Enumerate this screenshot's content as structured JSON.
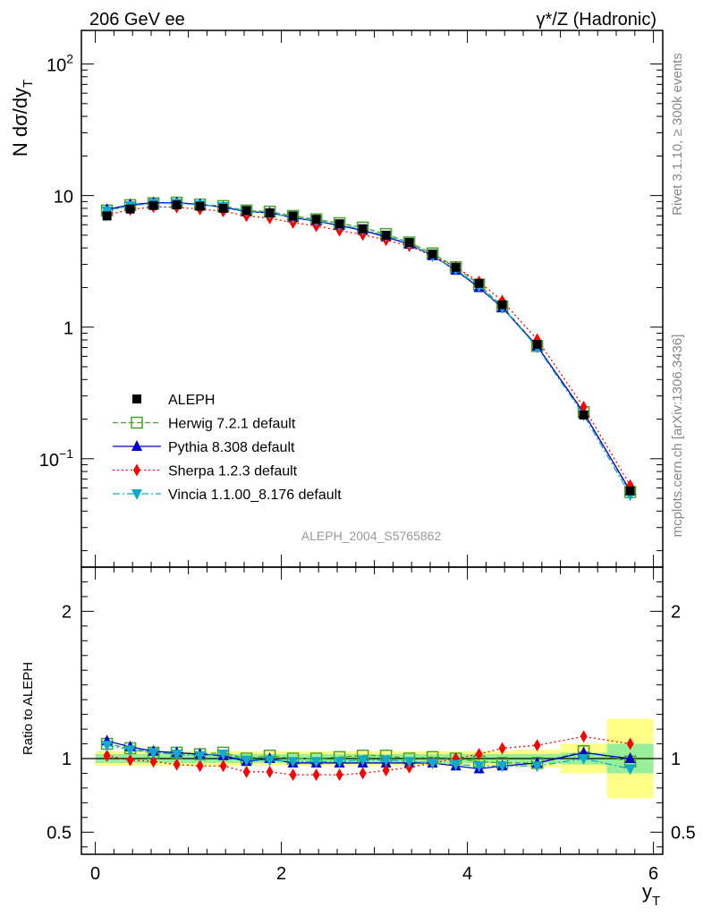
{
  "chart_data": {
    "type": "line",
    "title_left": "206 GeV ee",
    "title_right": "γ*/Z (Hadronic)",
    "xlabel": "y",
    "xlabel_sub": "T",
    "ylabel": "N dσ/dy",
    "ylabel_sub": "T",
    "ratio_ylabel": "Ratio to ALEPH",
    "analysis_label": "ALEPH_2004_S5765862",
    "side_label_1": "Rivet 3.1.10, ≥ 300k events",
    "side_label_2": "mcplots.cern.ch [arXiv:1306.3436]",
    "xlim": [
      -0.15,
      6.1
    ],
    "ylim": [
      0.015,
      180
    ],
    "yscale": "log",
    "ratio_ylim": [
      0.35,
      2.3
    ],
    "x_ticks": [
      0,
      2,
      4,
      6
    ],
    "main_y_ticks": [
      {
        "value": 100,
        "label": "10",
        "sup": "2"
      },
      {
        "value": 10,
        "label": "10",
        "sup": ""
      },
      {
        "value": 1,
        "label": "1",
        "sup": ""
      },
      {
        "value": 0.1,
        "label": "10",
        "sup": "−1"
      }
    ],
    "ratio_y_ticks": [
      {
        "value": 0.5,
        "label": "0.5"
      },
      {
        "value": 1,
        "label": "1"
      },
      {
        "value": 2,
        "label": "2"
      }
    ],
    "x": [
      0.125,
      0.375,
      0.625,
      0.875,
      1.125,
      1.375,
      1.625,
      1.875,
      2.125,
      2.375,
      2.625,
      2.875,
      3.125,
      3.375,
      3.625,
      3.875,
      4.125,
      4.375,
      4.75,
      5.25,
      5.75
    ],
    "bin_edges": [
      0,
      0.25,
      0.5,
      0.75,
      1.0,
      1.25,
      1.5,
      1.75,
      2.0,
      2.25,
      2.5,
      2.75,
      3.0,
      3.25,
      3.5,
      3.75,
      4.0,
      4.25,
      4.5,
      5.0,
      5.5,
      6.0
    ],
    "data": {
      "name": "ALEPH",
      "values": [
        7.0,
        7.9,
        8.4,
        8.5,
        8.3,
        8.0,
        7.7,
        7.4,
        7.0,
        6.6,
        6.1,
        5.6,
        5.0,
        4.4,
        3.6,
        2.85,
        2.15,
        1.48,
        0.74,
        0.215,
        0.057
      ],
      "band_stat": [
        0.03,
        0.03,
        0.03,
        0.03,
        0.03,
        0.03,
        0.03,
        0.03,
        0.03,
        0.03,
        0.03,
        0.03,
        0.03,
        0.03,
        0.03,
        0.03,
        0.03,
        0.03,
        0.03,
        0.04,
        0.1
      ],
      "band_total": [
        0.05,
        0.05,
        0.05,
        0.05,
        0.05,
        0.05,
        0.05,
        0.05,
        0.05,
        0.05,
        0.05,
        0.05,
        0.05,
        0.05,
        0.05,
        0.05,
        0.05,
        0.05,
        0.06,
        0.1,
        0.27
      ]
    },
    "series": [
      {
        "name": "Herwig 7.2.1 default",
        "color": "#44a32a",
        "dash": "6,3",
        "marker": "open-square",
        "ratio": [
          1.1,
          1.07,
          1.04,
          1.04,
          1.03,
          1.04,
          1.0,
          1.02,
          1.0,
          1.0,
          1.01,
          1.02,
          1.02,
          1.0,
          1.01,
          1.0,
          0.98,
          0.97,
          0.97,
          1.05,
          0.98
        ]
      },
      {
        "name": "Pythia 8.308 default",
        "color": "#0000cc",
        "dash": "",
        "marker": "triangle-up",
        "ratio": [
          1.12,
          1.08,
          1.05,
          1.04,
          1.03,
          1.02,
          0.98,
          1.0,
          0.97,
          0.97,
          0.97,
          0.97,
          0.97,
          0.97,
          0.97,
          0.95,
          0.93,
          0.95,
          0.97,
          1.04,
          1.0
        ]
      },
      {
        "name": "Sherpa 1.2.3 default",
        "color": "#ff0000",
        "dash": "2,3",
        "marker": "diamond",
        "ratio": [
          1.02,
          0.99,
          0.98,
          0.96,
          0.95,
          0.95,
          0.91,
          0.91,
          0.89,
          0.89,
          0.89,
          0.9,
          0.92,
          0.94,
          0.97,
          1.0,
          1.03,
          1.07,
          1.09,
          1.15,
          1.1
        ]
      },
      {
        "name": "Vincia 1.1.00_8.176 default",
        "color": "#11aacc",
        "dash": "8,3,2,3",
        "marker": "triangle-down",
        "ratio": [
          1.09,
          1.06,
          1.04,
          1.03,
          1.02,
          1.03,
          0.99,
          0.99,
          0.98,
          0.98,
          0.98,
          0.99,
          0.99,
          0.98,
          0.97,
          0.96,
          0.95,
          0.95,
          0.95,
          1.0,
          0.93
        ]
      }
    ],
    "legend_placement": "lower-left",
    "colors": {
      "band_stat": "#99ee99",
      "band_total": "#ffff88"
    }
  }
}
